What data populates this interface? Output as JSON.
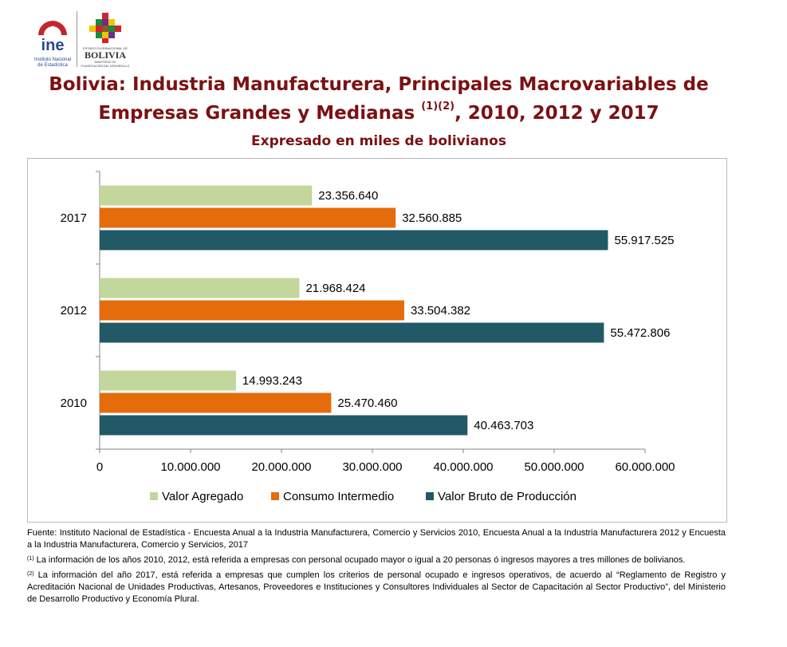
{
  "header": {
    "ine_logo_text": "ine",
    "ine_logo_sub1": "Instituto Nacional",
    "ine_logo_sub2": "de Estadística",
    "bolivia_small": "ESTADO PLURINACIONAL DE",
    "bolivia_big": "BOLIVIA",
    "bolivia_min1": "MINISTERIO DE",
    "bolivia_min2": "PLANIFICACIÓN DEL DESARROLLO"
  },
  "title": {
    "line1": "Bolivia: Industria Manufacturera, Principales Macrovariables de",
    "line2_pre": "Empresas Grandes y Medianas ",
    "line2_sup": "(1)(2)",
    "line2_post": ",  2010, 2012 y 2017",
    "subtitle": "Expresado en miles de bolivianos"
  },
  "colors": {
    "valor_agregado": "#c3d69b",
    "consumo_intermedio": "#e46c0a",
    "valor_bruto": "#215967",
    "title": "#7b1113",
    "ine_red": "#c0282d",
    "ine_blue": "#2b4a8c"
  },
  "chart_data": {
    "type": "bar",
    "orientation": "horizontal",
    "categories": [
      "2017",
      "2012",
      "2010"
    ],
    "series": [
      {
        "name": "Valor Agregado",
        "values": [
          23356640,
          21968424,
          14993243
        ]
      },
      {
        "name": "Consumo Intermedio",
        "values": [
          32560885,
          33504382,
          25470460
        ]
      },
      {
        "name": "Valor Bruto de Producción",
        "values": [
          55917525,
          55472806,
          40463703
        ]
      }
    ],
    "value_labels": [
      [
        "23.356.640",
        "21.968.424",
        "14.993.243"
      ],
      [
        "32.560.885",
        "33.504.382",
        "25.470.460"
      ],
      [
        "55.917.525",
        "55.472.806",
        "40.463.703"
      ]
    ],
    "xlim": [
      0,
      60000000
    ],
    "ticks": [
      0,
      10000000,
      20000000,
      30000000,
      40000000,
      50000000,
      60000000
    ],
    "tick_labels": [
      "0",
      "10.000.000",
      "20.000.000",
      "30.000.000",
      "40.000.000",
      "50.000.000",
      "60.000.000"
    ],
    "grid": false,
    "legend_position": "bottom"
  },
  "notes": {
    "fuente": "Fuente: Instituto Nacional de Estadística - Encuesta Anual a la Industria Manufacturera, Comercio y Servicios 2010, Encuesta Anual a la Industria Manufacturera 2012 y Encuesta a la Industria Manufacturera, Comercio y Servicios, 2017",
    "note1_marker": "(1)",
    "note1": " La información de los años 2010, 2012, está referida a empresas con personal ocupado mayor o igual a 20 personas ó ingresos mayores a tres millones de bolivianos.",
    "note2_marker": "(2)",
    "note2": " La información del año 2017, está referida a empresas que cumplen los criterios de personal ocupado e ingresos operativos, de acuerdo al “Reglamento de Registro y Acreditación Nacional de Unidades Productivas, Artesanos, Proveedores e Instituciones y Consultores Individuales al Sector de Capacitación al Sector Productivo”, del Ministerio de Desarrollo Productivo y Economía Plural."
  }
}
